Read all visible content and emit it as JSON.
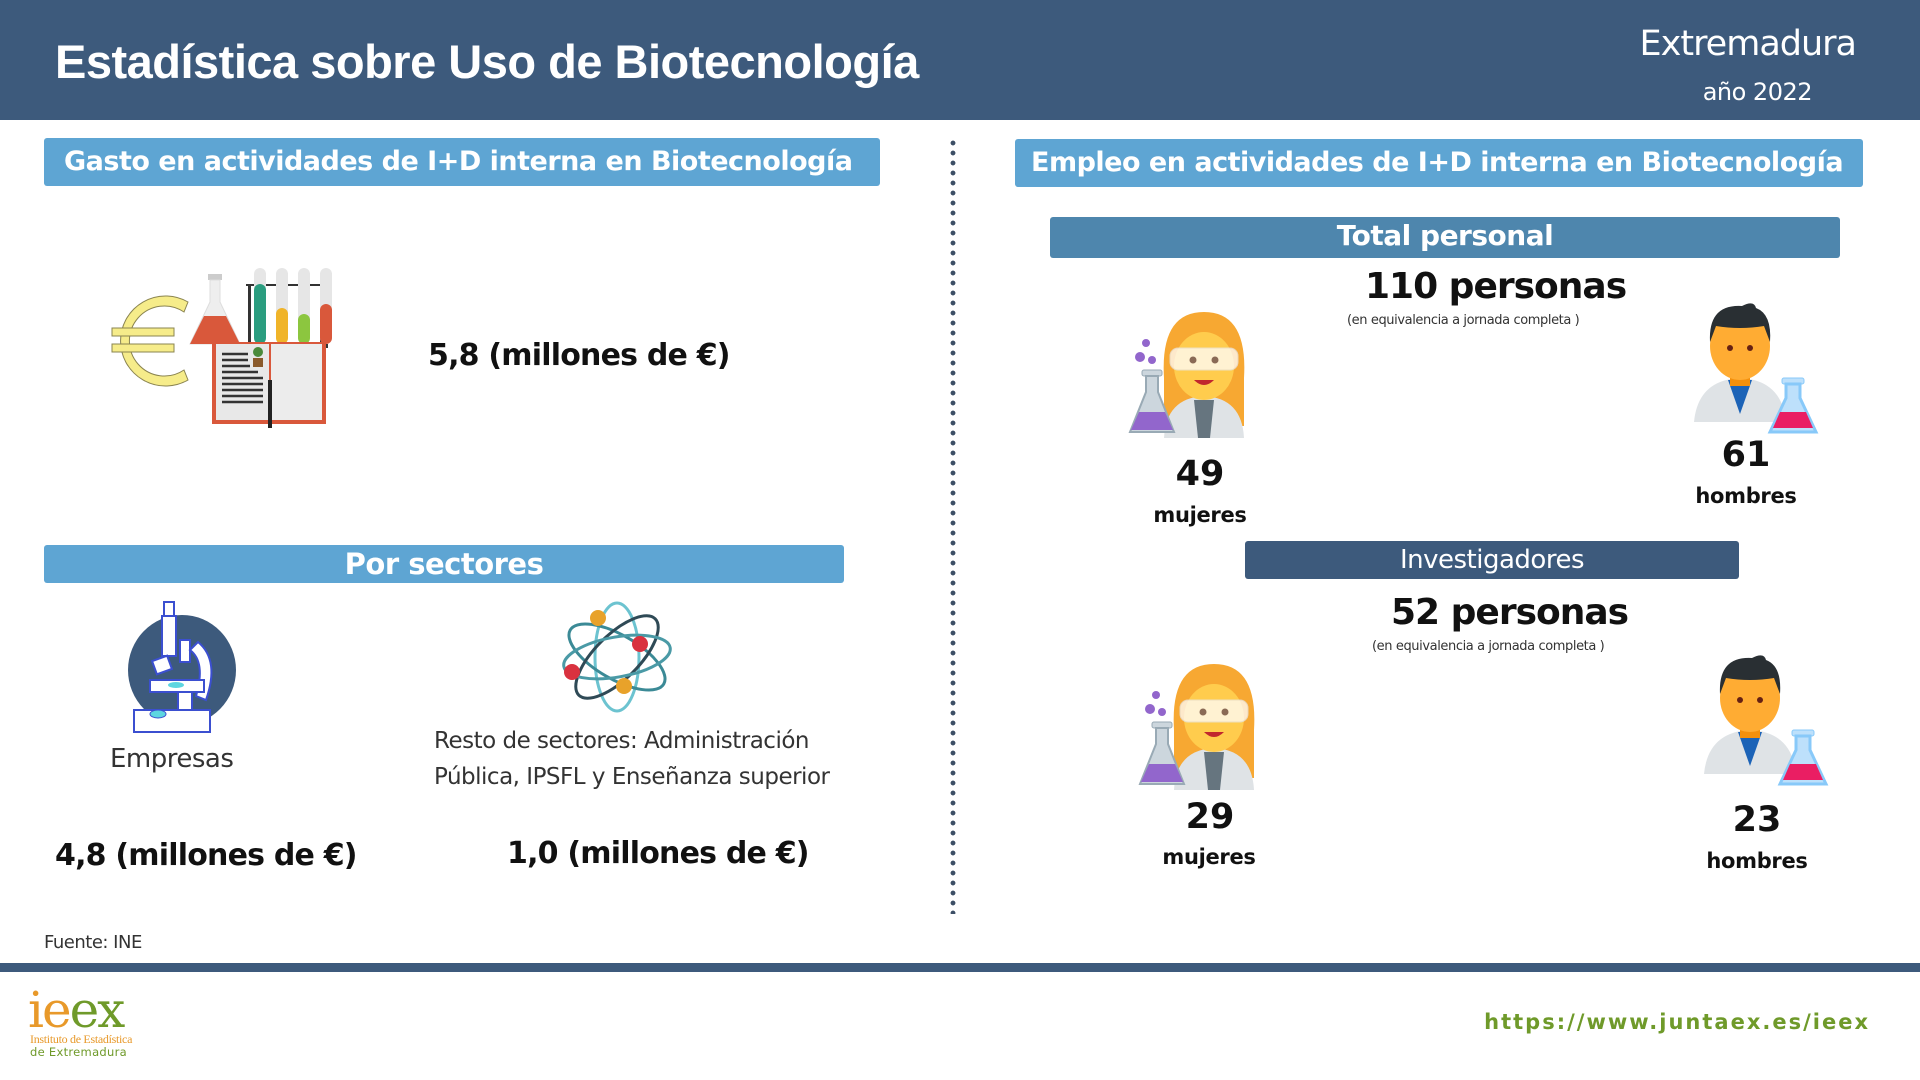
{
  "header": {
    "title": "Estadística sobre Uso de Biotecnología",
    "region": "Extremadura",
    "year": "año 2022"
  },
  "spending": {
    "section_title": "Gasto en actividades de I+D interna en Biotecnología",
    "total_value": "5,8 (millones de €)",
    "icon": "euro-lab-book-icon",
    "by_sector": {
      "title": "Por sectores",
      "sectors": [
        {
          "label": "Empresas",
          "value": "4,8 (millones de €)",
          "icon": "microscope-icon"
        },
        {
          "label_line1": "Resto de sectores: Administración",
          "label_line2": "Pública, IPSFL y Enseñanza superior",
          "value": "1,0 (millones de €)",
          "icon": "atom-icon"
        }
      ]
    }
  },
  "employment": {
    "section_title": "Empleo en actividades de I+D interna en  Biotecnología",
    "total_personal": {
      "title": "Total personal",
      "total": "110 personas",
      "note": "(en equivalencia a jornada completa )",
      "women": {
        "count": "49",
        "label": "mujeres",
        "icon": "woman-scientist-icon"
      },
      "men": {
        "count": "61",
        "label": "hombres",
        "icon": "man-scientist-icon"
      }
    },
    "researchers": {
      "title": "Investigadores",
      "total": "52 personas",
      "note": "(en equivalencia a jornada completa )",
      "women": {
        "count": "29",
        "label": "mujeres",
        "icon": "woman-scientist-icon"
      },
      "men": {
        "count": "23",
        "label": "hombres",
        "icon": "man-scientist-icon"
      }
    }
  },
  "footer": {
    "source": "Fuente: INE",
    "logo_text": "ieex",
    "logo_sub1": "Instituto de Estadística",
    "logo_sub2": "de Extremadura",
    "url": "https://www.juntaex.es/ieex"
  },
  "colors": {
    "header_bg": "#3d5a7c",
    "bar_light": "#5ea5d3",
    "bar_mid": "#4e86ad",
    "logo_orange": "#e8992a",
    "logo_green": "#6f9a2a"
  }
}
